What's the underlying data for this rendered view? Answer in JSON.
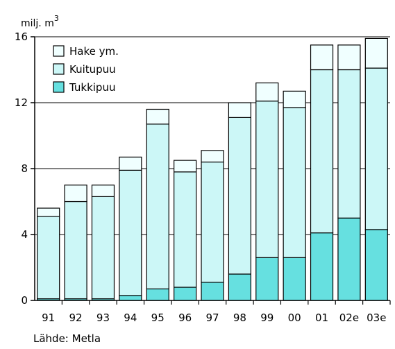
{
  "chart_data": {
    "type": "bar",
    "stacked": true,
    "ylabel_unit": "milj. m",
    "ylabel_superscript": "3",
    "ylim": [
      0,
      16
    ],
    "yticks": [
      0,
      4,
      8,
      12,
      16
    ],
    "grid": "horizontal at 8, 12 and 16",
    "legend_position": "top-left",
    "categories": [
      "91",
      "92",
      "93",
      "94",
      "95",
      "96",
      "97",
      "98",
      "99",
      "00",
      "01",
      "02e",
      "03e"
    ],
    "series": [
      {
        "name": "Tukkipuu",
        "color": "#66e0e0",
        "values": [
          0.1,
          0.1,
          0.1,
          0.3,
          0.7,
          0.8,
          1.1,
          1.6,
          2.6,
          2.6,
          4.1,
          5.0,
          4.3
        ]
      },
      {
        "name": "Kuitupuu",
        "color": "#ccf7f7",
        "values": [
          5.0,
          5.9,
          6.2,
          7.6,
          10.0,
          7.0,
          7.3,
          9.5,
          9.5,
          9.1,
          9.9,
          9.0,
          9.8
        ]
      },
      {
        "name": "Hake ym.",
        "color": "#f0ffff",
        "values": [
          0.5,
          1.0,
          0.7,
          0.8,
          0.9,
          0.7,
          0.7,
          0.9,
          1.1,
          1.0,
          1.5,
          1.5,
          1.8
        ]
      }
    ],
    "legend_order": [
      "Hake ym.",
      "Kuitupuu",
      "Tukkipuu"
    ],
    "source": "Lähde: Metla"
  }
}
